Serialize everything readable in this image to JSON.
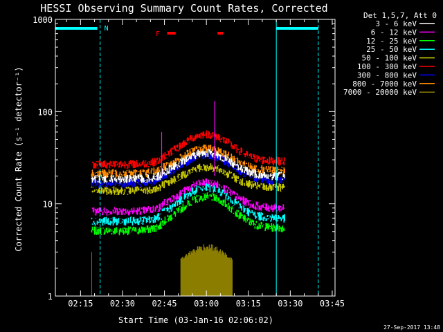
{
  "chart_data": {
    "type": "line",
    "title": "HESSI Observing Summary Count Rates, Corrected",
    "xlabel": "Start Time (03-Jan-16 02:06:02)",
    "ylabel": "Corrected Count Rate (s⁻¹ detector⁻¹)",
    "y_scale": "log",
    "ylim": [
      1,
      1000
    ],
    "xlim": [
      "02:06",
      "03:46"
    ],
    "y_tick_labels": [
      "1",
      "10",
      "100",
      "1000"
    ],
    "x_tick_labels": [
      "02:15",
      "02:30",
      "02:45",
      "03:00",
      "03:15",
      "03:30",
      "03:45"
    ],
    "legend_title": "Det 1,5,7, Att 0",
    "legend_position": "top-right",
    "data_window": [
      "02:19",
      "03:28"
    ],
    "flare_peak": "03:00",
    "series": [
      {
        "name": "3 - 6 keV",
        "color": "#ffffff",
        "base": 20,
        "peak": 36
      },
      {
        "name": "6 - 12 keV",
        "color": "#ff00ff",
        "base": 9,
        "peak": 17
      },
      {
        "name": "12 - 25 keV",
        "color": "#00ff00",
        "base": 5.5,
        "peak": 12
      },
      {
        "name": "25 - 50 keV",
        "color": "#00ffff",
        "base": 7,
        "peak": 15
      },
      {
        "name": "50 - 100 keV",
        "color": "#c8c800",
        "base": 15,
        "peak": 25
      },
      {
        "name": "100 - 300 keV",
        "color": "#ff0000",
        "base": 29,
        "peak": 57
      },
      {
        "name": "300 - 800 keV",
        "color": "#0000ff",
        "base": 18,
        "peak": 34
      },
      {
        "name": "800 - 7000 keV",
        "color": "#ff8c00",
        "base": 23,
        "peak": 40
      },
      {
        "name": "7000 - 20000 keV",
        "color": "#8b7d00",
        "base": 2,
        "peak": 3.5
      }
    ],
    "annotations": {
      "night_label": "N",
      "flare_label": "F",
      "night_color": "#00ffff",
      "flare_color": "#ff0000"
    }
  },
  "footer": {
    "timestamp": "27-Sep-2017 13:48"
  }
}
